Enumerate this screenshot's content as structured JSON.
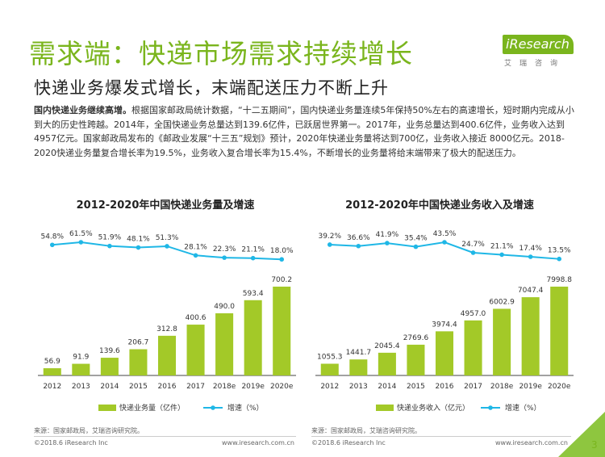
{
  "header": {
    "title": "需求端：快递市场需求持续增长",
    "logo_text": "Research",
    "logo_prefix": "i",
    "logo_sub": "艾瑞咨询"
  },
  "subtitle": "快递业务爆发式增长，末端配送压力不断上升",
  "paragraph": {
    "lead": "国内快递业务继续高增。",
    "body": "根据国家邮政局统计数据，“十二五期间”，国内快递业务量连续5年保持50%左右的高速增长，短时期内完成从小到大的历史性跨越。2014年，全国快递业务总量达到139.6亿件，已跃居世界第一。2017年，业务总量达到400.6亿件，业务收入达到4957亿元。国家邮政局发布的《邮政业发展“十三五”规划》预计，2020年快递业务量将达到700亿，业务收入接近 8000亿元。2018-2020快递业务量复合增长率为19.5%，业务收入复合增长率为15.4%，不断增长的业务量将给末端带来了极大的配送压力。"
  },
  "chart_data": [
    {
      "type": "bar",
      "title": "2012-2020年中国快递业务量及增速",
      "categories": [
        "2012",
        "2013",
        "2014",
        "2015",
        "2016",
        "2017",
        "2018e",
        "2019e",
        "2020e"
      ],
      "series": [
        {
          "name": "快递业务量（亿件）",
          "type": "bar",
          "values": [
            56.9,
            91.9,
            139.6,
            206.7,
            312.8,
            400.6,
            490.0,
            593.4,
            700.2
          ],
          "labels": [
            "56.9",
            "91.9",
            "139.6",
            "206.7",
            "312.8",
            "400.6",
            "490.0",
            "593.4",
            "700.2"
          ]
        },
        {
          "name": "增速（%）",
          "type": "line",
          "values": [
            54.8,
            61.5,
            51.9,
            48.1,
            51.3,
            28.1,
            22.3,
            21.1,
            18.0
          ],
          "labels": [
            "54.8%",
            "61.5%",
            "51.9%",
            "48.1%",
            "51.3%",
            "28.1%",
            "22.3%",
            "21.1%",
            "18.0%"
          ]
        }
      ],
      "ylim": [
        0,
        700.2
      ],
      "line_ylim": [
        0,
        61.5
      ],
      "grid": false,
      "legend": "bottom",
      "colors": {
        "bar": "#a3c928",
        "line": "#1fb7e6"
      }
    },
    {
      "type": "bar",
      "title": "2012-2020年中国快递业务收入及增速",
      "categories": [
        "2012",
        "2013",
        "2014",
        "2015",
        "2016",
        "2017",
        "2018e",
        "2019e",
        "2020e"
      ],
      "series": [
        {
          "name": "快递业务收入（亿元）",
          "type": "bar",
          "values": [
            1055.3,
            1441.7,
            2045.4,
            2769.6,
            3974.4,
            4957.0,
            6002.9,
            7047.4,
            7998.8
          ],
          "labels": [
            "1055.3",
            "1441.7",
            "2045.4",
            "2769.6",
            "3974.4",
            "4957.0",
            "6002.9",
            "7047.4",
            "7998.8"
          ]
        },
        {
          "name": "增速（%）",
          "type": "line",
          "values": [
            39.2,
            36.6,
            41.9,
            35.4,
            43.5,
            24.7,
            21.1,
            17.4,
            13.5
          ],
          "labels": [
            "39.2%",
            "36.6%",
            "41.9%",
            "35.4%",
            "43.5%",
            "24.7%",
            "21.1%",
            "17.4%",
            "13.5%"
          ]
        }
      ],
      "ylim": [
        0,
        7998.8
      ],
      "line_ylim": [
        0,
        43.5
      ],
      "grid": false,
      "legend": "bottom",
      "colors": {
        "bar": "#a3c928",
        "line": "#1fb7e6"
      }
    }
  ],
  "footer": {
    "source": "来源：国家邮政局，艾瑞咨询研究院。",
    "copyright": "©2018.6 iResearch Inc",
    "website": "www.iresearch.com.cn",
    "page": "3"
  },
  "colors": {
    "accent": "#7ab51d",
    "corner": "#8ec63f"
  }
}
